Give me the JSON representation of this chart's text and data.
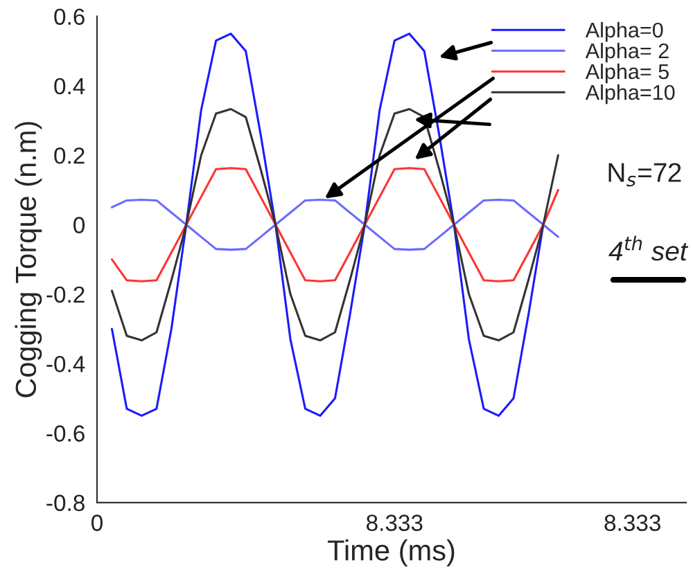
{
  "chart_data": {
    "type": "line",
    "xlabel": "Time (ms)",
    "ylabel": "Cogging Torque (n.m)",
    "categories": [
      "0",
      null,
      null,
      null,
      null,
      null,
      null,
      null,
      null,
      null,
      null,
      null,
      null,
      null,
      null,
      null,
      null,
      null,
      null,
      null,
      "8.333",
      null,
      null,
      null,
      null,
      null,
      null,
      null,
      null,
      null,
      null,
      null,
      null,
      null,
      null,
      null,
      "8.333",
      null,
      null,
      null
    ],
    "ylim": [
      -0.8,
      0.6
    ],
    "yticks": [
      -0.8,
      -0.6,
      -0.4,
      -0.2,
      0,
      0.2,
      0.4,
      0.6
    ],
    "grid": false,
    "legend": "top right",
    "marker": "none",
    "line_style": "solid",
    "annotations": [
      "N$_{s}$=72",
      "4$^{th}$ set"
    ],
    "series": [
      {
        "name": "Alpha=0",
        "color": "#1a1aff",
        "values": [
          null,
          -0.3,
          -0.53,
          -0.55,
          -0.53,
          -0.3,
          0,
          0.33,
          0.53,
          0.55,
          0.5,
          0.26,
          0,
          -0.33,
          -0.53,
          -0.55,
          -0.5,
          -0.26,
          0,
          0.33,
          0.53,
          0.55,
          0.5,
          0.26,
          0,
          -0.33,
          -0.53,
          -0.55,
          -0.5,
          -0.26,
          0,
          null,
          null,
          null,
          null,
          null,
          null,
          null,
          null,
          null
        ]
      },
      {
        "name": "Alpha= 2",
        "color": "#6a6aff",
        "values": [
          null,
          0.05,
          0.07,
          0.072,
          0.07,
          0.035,
          0,
          -0.035,
          -0.07,
          -0.072,
          -0.07,
          -0.035,
          0,
          0.035,
          0.07,
          0.072,
          0.07,
          0.035,
          0,
          -0.035,
          -0.07,
          -0.072,
          -0.07,
          -0.035,
          0,
          0.035,
          0.07,
          0.072,
          0.07,
          0.035,
          0,
          -0.035,
          null,
          null,
          null,
          null,
          null,
          null,
          null,
          null
        ]
      },
      {
        "name": "Alpha= 5",
        "color": "#ff3333",
        "values": [
          null,
          -0.1,
          -0.16,
          -0.163,
          -0.16,
          -0.08,
          0,
          0.08,
          0.16,
          0.163,
          0.16,
          0.08,
          0,
          -0.08,
          -0.16,
          -0.163,
          -0.16,
          -0.08,
          0,
          0.08,
          0.16,
          0.163,
          0.16,
          0.08,
          0,
          -0.08,
          -0.16,
          -0.163,
          -0.16,
          -0.08,
          0,
          0.1,
          null,
          null,
          null,
          null,
          null,
          null,
          null,
          null
        ]
      },
      {
        "name": "Alpha=10",
        "color": "#333333",
        "values": [
          null,
          -0.19,
          -0.32,
          -0.333,
          -0.31,
          -0.16,
          0,
          0.2,
          0.32,
          0.333,
          0.31,
          0.16,
          0,
          -0.2,
          -0.32,
          -0.333,
          -0.31,
          -0.16,
          0,
          0.2,
          0.32,
          0.333,
          0.31,
          0.16,
          0,
          -0.2,
          -0.32,
          -0.333,
          -0.31,
          -0.16,
          0,
          0.2,
          null,
          null,
          null,
          null,
          null,
          null,
          null,
          null
        ]
      }
    ]
  }
}
